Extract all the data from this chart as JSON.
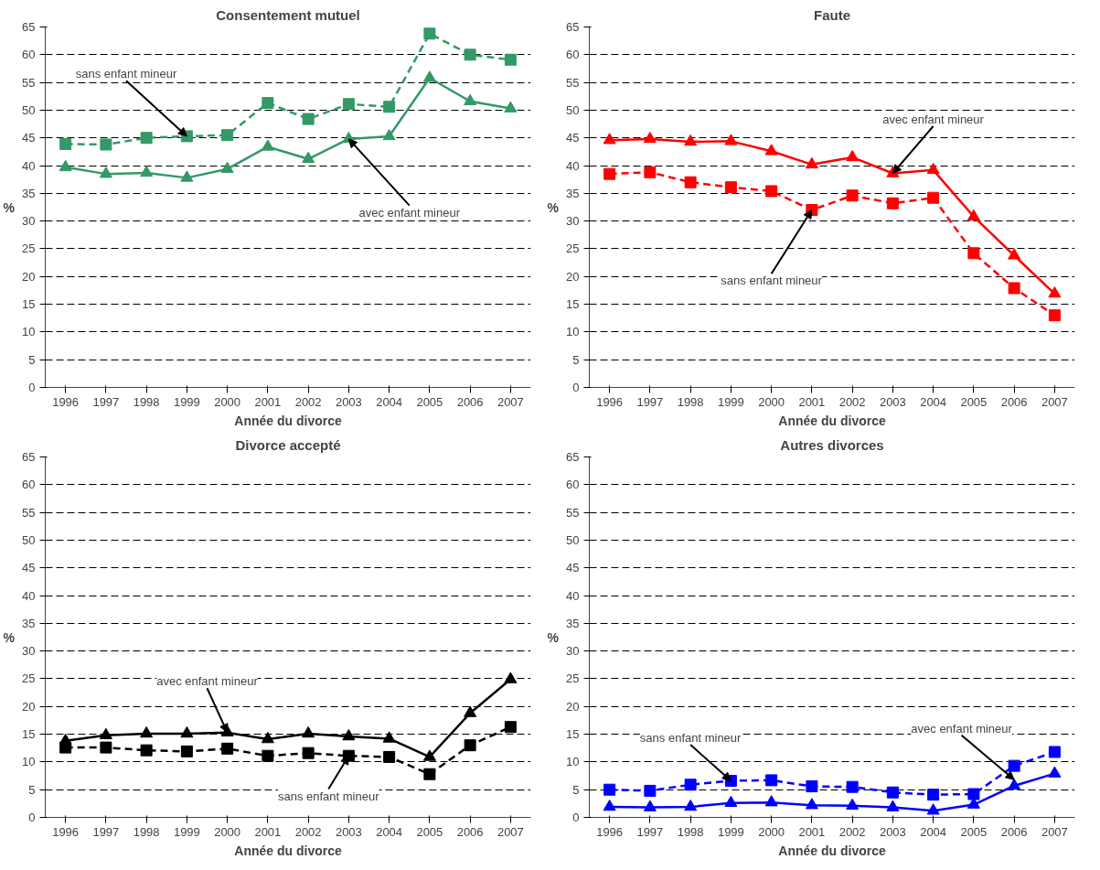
{
  "chart_data": [
    {
      "type": "line",
      "title": "Consentement mutuel",
      "xlabel": "Année du divorce",
      "ylabel": "%",
      "categories": [
        "1996",
        "1997",
        "1998",
        "1999",
        "2000",
        "2001",
        "2002",
        "2003",
        "2004",
        "2005",
        "2006",
        "2007"
      ],
      "ylim": [
        0,
        65
      ],
      "yticks": [
        0,
        5,
        10,
        15,
        20,
        25,
        30,
        35,
        40,
        45,
        50,
        55,
        60,
        65
      ],
      "grid": "y",
      "series": [
        {
          "color": "#339966",
          "marker": "triangle",
          "line_style": "solid",
          "values": [
            39.7,
            38.5,
            38.7,
            37.8,
            39.4,
            43.4,
            41.2,
            44.8,
            45.3,
            55.8,
            51.6,
            50.3
          ]
        },
        {
          "color": "#339966",
          "marker": "square",
          "line_style": "dashed",
          "values": [
            43.9,
            43.8,
            45.0,
            45.3,
            45.5,
            51.3,
            48.4,
            51.1,
            50.6,
            63.8,
            60.0,
            59.1
          ]
        }
      ],
      "annotations": [
        {
          "text": "sans enfant mineur",
          "x": "1999",
          "y": 45.3
        },
        {
          "text": "avec enfant mineur",
          "x": "2003",
          "y": 44.8
        }
      ]
    },
    {
      "type": "line",
      "title": "Faute",
      "xlabel": "Année du divorce",
      "ylabel": "%",
      "categories": [
        "1996",
        "1997",
        "1998",
        "1999",
        "2000",
        "2001",
        "2002",
        "2003",
        "2004",
        "2005",
        "2006",
        "2007"
      ],
      "ylim": [
        0,
        65
      ],
      "yticks": [
        0,
        5,
        10,
        15,
        20,
        25,
        30,
        35,
        40,
        45,
        50,
        55,
        60,
        65
      ],
      "grid": "y",
      "series": [
        {
          "color": "#ff0000",
          "marker": "triangle",
          "line_style": "solid",
          "values": [
            44.6,
            44.8,
            44.3,
            44.4,
            42.6,
            40.2,
            41.5,
            38.6,
            39.2,
            30.8,
            23.8,
            16.9
          ]
        },
        {
          "color": "#ff0000",
          "marker": "square",
          "line_style": "dashed",
          "values": [
            38.5,
            38.8,
            37.0,
            36.1,
            35.4,
            32.0,
            34.6,
            33.2,
            34.2,
            24.2,
            17.9,
            13.0
          ]
        }
      ],
      "annotations": [
        {
          "text": "avec enfant mineur",
          "x": "2003",
          "y": 38.6
        },
        {
          "text": "sans enfant mineur",
          "x": "2001",
          "y": 32.0
        }
      ]
    },
    {
      "type": "line",
      "title": "Divorce accepté",
      "xlabel": "Année du divorce",
      "ylabel": "%",
      "categories": [
        "1996",
        "1997",
        "1998",
        "1999",
        "2000",
        "2001",
        "2002",
        "2003",
        "2004",
        "2005",
        "2006",
        "2007"
      ],
      "ylim": [
        0,
        65
      ],
      "yticks": [
        0,
        5,
        10,
        15,
        20,
        25,
        30,
        35,
        40,
        45,
        50,
        55,
        60,
        65
      ],
      "grid": "y",
      "series": [
        {
          "color": "#000000",
          "marker": "triangle",
          "line_style": "solid",
          "values": [
            13.8,
            14.8,
            15.1,
            15.1,
            15.3,
            14.1,
            15.1,
            14.6,
            14.2,
            10.9,
            18.8,
            24.9
          ]
        },
        {
          "color": "#000000",
          "marker": "square",
          "line_style": "dashed",
          "values": [
            12.6,
            12.6,
            12.1,
            11.9,
            12.4,
            11.1,
            11.6,
            11.1,
            10.9,
            7.8,
            13.0,
            16.3
          ]
        }
      ],
      "annotations": [
        {
          "text": "avec enfant mineur",
          "x": "2000",
          "y": 15.3
        },
        {
          "text": "sans enfant mineur",
          "x": "2003",
          "y": 11.1
        }
      ]
    },
    {
      "type": "line",
      "title": "Autres divorces",
      "xlabel": "Année du divorce",
      "ylabel": "%",
      "categories": [
        "1996",
        "1997",
        "1998",
        "1999",
        "2000",
        "2001",
        "2002",
        "2003",
        "2004",
        "2005",
        "2006",
        "2007"
      ],
      "ylim": [
        0,
        65
      ],
      "yticks": [
        0,
        5,
        10,
        15,
        20,
        25,
        30,
        35,
        40,
        45,
        50,
        55,
        60,
        65
      ],
      "grid": "y",
      "series": [
        {
          "color": "#0000ff",
          "marker": "triangle",
          "line_style": "solid",
          "values": [
            1.9,
            1.8,
            1.9,
            2.6,
            2.7,
            2.2,
            2.1,
            1.8,
            1.2,
            2.3,
            5.7,
            7.9
          ]
        },
        {
          "color": "#0000ff",
          "marker": "square",
          "line_style": "dashed",
          "values": [
            5.0,
            4.8,
            5.9,
            6.6,
            6.7,
            5.6,
            5.5,
            4.5,
            4.1,
            4.2,
            9.3,
            11.8
          ]
        }
      ],
      "annotations": [
        {
          "text": "sans enfant mineur",
          "x": "1999",
          "y": 6.6
        },
        {
          "text": "avec enfant mineur",
          "x": "2006",
          "y": 6.8
        }
      ]
    }
  ]
}
